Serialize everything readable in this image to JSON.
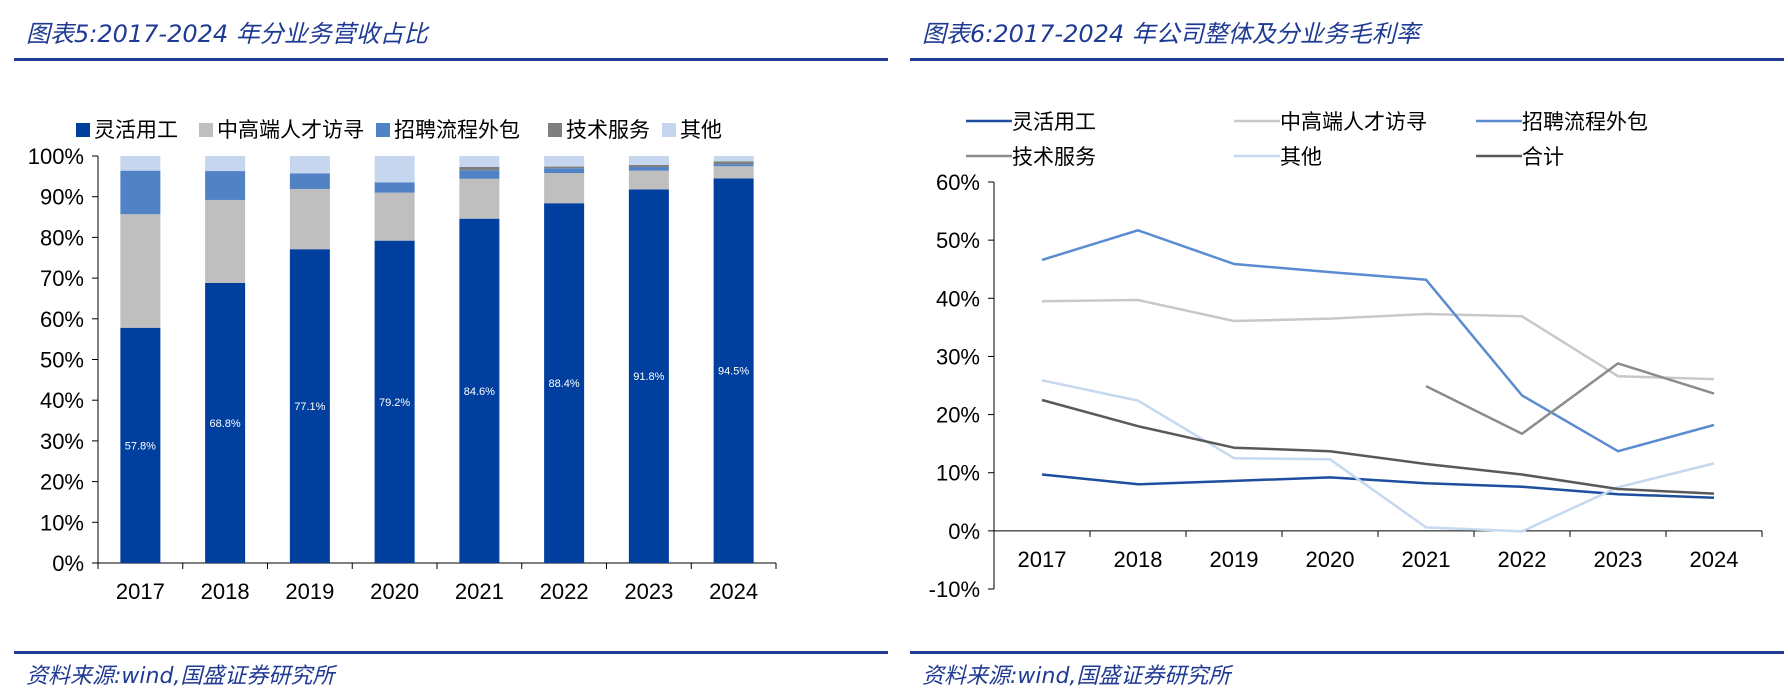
{
  "left": {
    "title": "图表5:2017-2024 年分业务营收占比",
    "source": "资料来源:wind,国盛证券研究所"
  },
  "right": {
    "title": "图表6:2017-2024 年公司整体及分业务毛利率",
    "source": "资料来源:wind,国盛证券研究所"
  },
  "chart_data": [
    {
      "type": "bar",
      "stacked": true,
      "categories": [
        "2017",
        "2018",
        "2019",
        "2020",
        "2021",
        "2022",
        "2023",
        "2024"
      ],
      "ylim": [
        0,
        100
      ],
      "yticks": [
        "0%",
        "10%",
        "20%",
        "30%",
        "40%",
        "50%",
        "60%",
        "70%",
        "80%",
        "90%",
        "100%"
      ],
      "legend_position": "top",
      "series": [
        {
          "name": "灵活用工",
          "color": "#003f9e",
          "values": [
            57.8,
            68.8,
            77.1,
            79.2,
            84.6,
            88.4,
            91.8,
            94.5
          ],
          "labels": [
            "57.8%",
            "68.8%",
            "77.1%",
            "79.2%",
            "84.6%",
            "88.4%",
            "91.8%",
            "94.5%"
          ]
        },
        {
          "name": "中高端人才访寻",
          "color": "#bfbfbf",
          "values": [
            27.9,
            20.4,
            14.8,
            11.8,
            9.8,
            7.4,
            4.6,
            3.0
          ]
        },
        {
          "name": "招聘流程外包",
          "color": "#5182c6",
          "values": [
            10.7,
            7.1,
            3.8,
            2.5,
            2.1,
            1.2,
            0.9,
            0.5
          ]
        },
        {
          "name": "技术服务",
          "color": "#7f7f7f",
          "values": [
            0,
            0,
            0,
            0,
            0.8,
            0.4,
            0.5,
            0.7
          ]
        },
        {
          "name": "其他",
          "color": "#c5d6ee",
          "values": [
            3.6,
            3.7,
            4.3,
            6.5,
            2.7,
            2.6,
            2.2,
            1.3
          ]
        }
      ]
    },
    {
      "type": "line",
      "categories": [
        "2017",
        "2018",
        "2019",
        "2020",
        "2021",
        "2022",
        "2023",
        "2024"
      ],
      "ylim": [
        -10,
        60
      ],
      "yticks": [
        "-10%",
        "0%",
        "10%",
        "20%",
        "30%",
        "40%",
        "50%",
        "60%"
      ],
      "legend_position": "top",
      "series": [
        {
          "name": "灵活用工",
          "color": "#1f4e9e",
          "values": [
            9.7,
            8.0,
            8.6,
            9.2,
            8.2,
            7.6,
            6.3,
            5.7
          ]
        },
        {
          "name": "中高端人才访寻",
          "color": "#c8c8c8",
          "values": [
            39.5,
            39.7,
            36.1,
            36.5,
            37.3,
            36.9,
            26.6,
            26.1
          ]
        },
        {
          "name": "招聘流程外包",
          "color": "#5b8bd0",
          "values": [
            46.6,
            51.7,
            45.9,
            44.5,
            43.2,
            23.3,
            13.7,
            18.2
          ]
        },
        {
          "name": "技术服务",
          "color": "#8c8c8c",
          "values": [
            null,
            null,
            null,
            null,
            24.9,
            16.7,
            28.8,
            23.6
          ]
        },
        {
          "name": "其他",
          "color": "#c5d8ef",
          "values": [
            25.9,
            22.4,
            12.5,
            12.3,
            0.6,
            -0.1,
            7.5,
            11.6
          ]
        },
        {
          "name": "合计",
          "color": "#595959",
          "values": [
            22.5,
            18.0,
            14.3,
            13.7,
            11.5,
            9.7,
            7.2,
            6.4
          ]
        }
      ]
    }
  ]
}
